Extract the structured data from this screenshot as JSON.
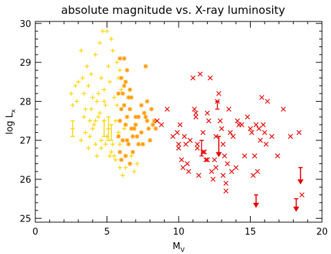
{
  "chart_data": {
    "type": "scatter",
    "title": "absolute magnitude vs. X-ray luminosity",
    "xlabel": {
      "main": "M",
      "sub": "V"
    },
    "ylabel": {
      "main": "log L",
      "sub": "x"
    },
    "xlim": [
      0,
      20
    ],
    "ylim": [
      24.9,
      30.05
    ],
    "xticks": [
      0,
      5,
      10,
      15,
      20
    ],
    "yticks": [
      25,
      26,
      27,
      28,
      29,
      30
    ],
    "x_minor_step": 1,
    "y_minor_step": 0.2,
    "grid": false,
    "colors": {
      "yellow": "#ffd400",
      "orange": "#ff9900",
      "red": "#e60000",
      "axis": "#000000"
    },
    "series": [
      {
        "marker": "plus",
        "color": "#ffd400",
        "points": [
          [
            2.5,
            28.2
          ],
          [
            2.6,
            27.9
          ],
          [
            2.8,
            28.4
          ],
          [
            3.0,
            28.5
          ],
          [
            2.9,
            28.0
          ],
          [
            3.2,
            29.3
          ],
          [
            3.3,
            28.6
          ],
          [
            3.4,
            28.2
          ],
          [
            3.5,
            27.8
          ],
          [
            3.6,
            28.9
          ],
          [
            3.7,
            28.4
          ],
          [
            3.8,
            27.5
          ],
          [
            3.9,
            28.7
          ],
          [
            4.0,
            28.1
          ],
          [
            4.1,
            27.4
          ],
          [
            4.2,
            29.2
          ],
          [
            4.3,
            28.0
          ],
          [
            4.4,
            27.6
          ],
          [
            4.5,
            29.5
          ],
          [
            4.6,
            28.6
          ],
          [
            4.7,
            29.8
          ],
          [
            4.8,
            28.3
          ],
          [
            4.9,
            27.9
          ],
          [
            5.0,
            29.8
          ],
          [
            5.1,
            28.9
          ],
          [
            5.2,
            28.5
          ],
          [
            5.3,
            29.6
          ],
          [
            5.4,
            29.3
          ],
          [
            5.5,
            28.1
          ],
          [
            5.6,
            27.5
          ],
          [
            5.7,
            29.0
          ],
          [
            5.8,
            28.6
          ],
          [
            5.9,
            28.8
          ],
          [
            4.5,
            27.7
          ],
          [
            4.2,
            26.9
          ],
          [
            3.8,
            27.1
          ],
          [
            3.5,
            27.2
          ],
          [
            4.0,
            27.3
          ],
          [
            4.6,
            27.0
          ],
          [
            4.9,
            26.9
          ],
          [
            5.2,
            26.6
          ],
          [
            5.4,
            26.9
          ],
          [
            5.6,
            26.5
          ],
          [
            5.8,
            27.2
          ],
          [
            5.1,
            27.3
          ],
          [
            4.3,
            26.6
          ],
          [
            3.7,
            26.8
          ],
          [
            3.2,
            27.0
          ],
          [
            3.4,
            27.6
          ],
          [
            3.9,
            27.8
          ],
          [
            4.6,
            26.8
          ],
          [
            5.0,
            27.1
          ],
          [
            5.5,
            26.6
          ],
          [
            5.9,
            26.3
          ],
          [
            6.1,
            26.1
          ],
          [
            5.3,
            26.7
          ],
          [
            6.3,
            26.3
          ],
          [
            6.7,
            26.6
          ],
          [
            6.9,
            26.2
          ],
          [
            7.1,
            26.4
          ],
          [
            5.7,
            27.9
          ],
          [
            6.0,
            28.3
          ],
          [
            6.2,
            27.3
          ],
          [
            4.8,
            27.5
          ],
          [
            4.4,
            28.2
          ],
          [
            2.6,
            27.3
          ],
          [
            4.2,
            27.5
          ],
          [
            4.8,
            28.0
          ],
          [
            5.9,
            26.9
          ]
        ]
      },
      {
        "marker": "asterisk",
        "color": "#ff9900",
        "points": [
          [
            5.9,
            29.1
          ],
          [
            6.2,
            29.1
          ],
          [
            6.4,
            28.8
          ],
          [
            6.0,
            28.6
          ],
          [
            6.3,
            28.5
          ],
          [
            6.1,
            28.2
          ],
          [
            6.5,
            28.1
          ],
          [
            5.8,
            28.2
          ],
          [
            6.2,
            27.9
          ],
          [
            6.0,
            27.8
          ],
          [
            6.6,
            27.8
          ],
          [
            6.4,
            27.6
          ],
          [
            5.9,
            27.5
          ],
          [
            6.3,
            27.4
          ],
          [
            6.7,
            27.3
          ],
          [
            7.0,
            27.4
          ],
          [
            7.2,
            27.6
          ],
          [
            7.6,
            27.7
          ],
          [
            7.8,
            27.5
          ],
          [
            8.1,
            27.8
          ],
          [
            7.7,
            28.9
          ],
          [
            7.4,
            27.9
          ],
          [
            7.9,
            27.3
          ],
          [
            8.2,
            27.4
          ],
          [
            6.8,
            27.1
          ],
          [
            6.1,
            27.0
          ],
          [
            6.5,
            26.9
          ],
          [
            5.9,
            26.7
          ],
          [
            6.3,
            26.6
          ],
          [
            6.8,
            26.7
          ],
          [
            7.2,
            26.9
          ],
          [
            7.5,
            26.9
          ],
          [
            6.0,
            26.5
          ],
          [
            6.6,
            26.4
          ],
          [
            7.0,
            27.6
          ],
          [
            7.4,
            27.2
          ],
          [
            6.2,
            28.4
          ],
          [
            6.7,
            28.1
          ],
          [
            5.8,
            27.1
          ],
          [
            7.8,
            28.0
          ],
          [
            8.3,
            27.5
          ],
          [
            6.4,
            27.0
          ],
          [
            7.7,
            27.6
          ],
          [
            6.9,
            27.3
          ],
          [
            7.1,
            27.1
          ],
          [
            8.4,
            27.3
          ],
          [
            6.6,
            28.3
          ],
          [
            8.0,
            27.0
          ]
        ]
      },
      {
        "marker": "x",
        "color": "#e60000",
        "points": [
          [
            8.5,
            27.5
          ],
          [
            8.8,
            27.4
          ],
          [
            9.2,
            27.8
          ],
          [
            9.6,
            27.1
          ],
          [
            9.9,
            27.2
          ],
          [
            10.0,
            26.8
          ],
          [
            10.1,
            27.4
          ],
          [
            10.2,
            26.5
          ],
          [
            10.3,
            26.3
          ],
          [
            10.4,
            27.1
          ],
          [
            10.5,
            26.9
          ],
          [
            10.6,
            26.4
          ],
          [
            10.7,
            26.2
          ],
          [
            10.8,
            27.0
          ],
          [
            11.0,
            28.6
          ],
          [
            11.1,
            27.8
          ],
          [
            11.2,
            27.6
          ],
          [
            11.3,
            26.9
          ],
          [
            11.4,
            26.1
          ],
          [
            11.5,
            28.7
          ],
          [
            11.7,
            27.2
          ],
          [
            11.8,
            26.7
          ],
          [
            11.9,
            26.5
          ],
          [
            12.0,
            27.7
          ],
          [
            12.1,
            27.5
          ],
          [
            12.2,
            28.6
          ],
          [
            12.3,
            26.2
          ],
          [
            12.4,
            26.0
          ],
          [
            12.5,
            26.5
          ],
          [
            12.6,
            27.1
          ],
          [
            12.7,
            28.0
          ],
          [
            12.8,
            28.2
          ],
          [
            12.9,
            27.5
          ],
          [
            13.0,
            27.3
          ],
          [
            13.1,
            26.9
          ],
          [
            13.2,
            26.6
          ],
          [
            13.3,
            25.7
          ],
          [
            13.4,
            26.4
          ],
          [
            13.5,
            27.8
          ],
          [
            13.6,
            27.2
          ],
          [
            13.7,
            26.2
          ],
          [
            13.8,
            27.1
          ],
          [
            14.0,
            26.3
          ],
          [
            14.2,
            27.4
          ],
          [
            14.4,
            27.4
          ],
          [
            14.6,
            26.6
          ],
          [
            14.8,
            27.6
          ],
          [
            15.0,
            27.3
          ],
          [
            15.1,
            27.2
          ],
          [
            15.2,
            26.1
          ],
          [
            15.3,
            26.6
          ],
          [
            15.4,
            27.4
          ],
          [
            15.5,
            26.2
          ],
          [
            15.6,
            27.3
          ],
          [
            15.7,
            27.0
          ],
          [
            15.8,
            28.1
          ],
          [
            15.9,
            27.4
          ],
          [
            16.0,
            27.2
          ],
          [
            16.1,
            26.9
          ],
          [
            16.2,
            28.0
          ],
          [
            16.5,
            27.1
          ],
          [
            16.9,
            26.6
          ],
          [
            17.3,
            27.8
          ],
          [
            17.8,
            27.1
          ],
          [
            18.4,
            27.2
          ],
          [
            18.6,
            25.6
          ],
          [
            13.1,
            26.1
          ],
          [
            12.0,
            26.5
          ],
          [
            11.3,
            26.8
          ],
          [
            11.7,
            26.7
          ],
          [
            14.1,
            27.5
          ],
          [
            12.6,
            26.3
          ],
          [
            13.3,
            25.9
          ],
          [
            11.2,
            27.7
          ],
          [
            10.0,
            26.9
          ]
        ]
      }
    ],
    "error_bars": [
      {
        "x": 2.6,
        "y": 27.3,
        "low": 27.1,
        "high": 27.5,
        "color": "#ffd400"
      },
      {
        "x": 4.8,
        "y": 27.3,
        "low": 27.1,
        "high": 27.5,
        "color": "#ffd400"
      },
      {
        "x": 5.1,
        "y": 27.3,
        "low": 27.0,
        "high": 27.6,
        "color": "#ffd400"
      },
      {
        "x": 5.3,
        "y": 27.2,
        "low": 27.0,
        "high": 27.4,
        "color": "#ffd400"
      },
      {
        "x": 11.6,
        "y": 26.8,
        "low": 26.6,
        "high": 27.0,
        "color": "#e60000"
      },
      {
        "x": 12.7,
        "y": 27.9,
        "low": 27.8,
        "high": 28.0,
        "color": "#e60000"
      }
    ],
    "upper_limits": [
      {
        "x": 12.8,
        "y": 27.1,
        "to": 26.6,
        "color": "#e60000"
      },
      {
        "x": 15.4,
        "y": 25.6,
        "to": 25.3,
        "color": "#e60000"
      },
      {
        "x": 18.2,
        "y": 25.5,
        "to": 25.2,
        "color": "#e60000"
      },
      {
        "x": 18.5,
        "y": 26.3,
        "to": 25.9,
        "color": "#e60000"
      }
    ]
  }
}
